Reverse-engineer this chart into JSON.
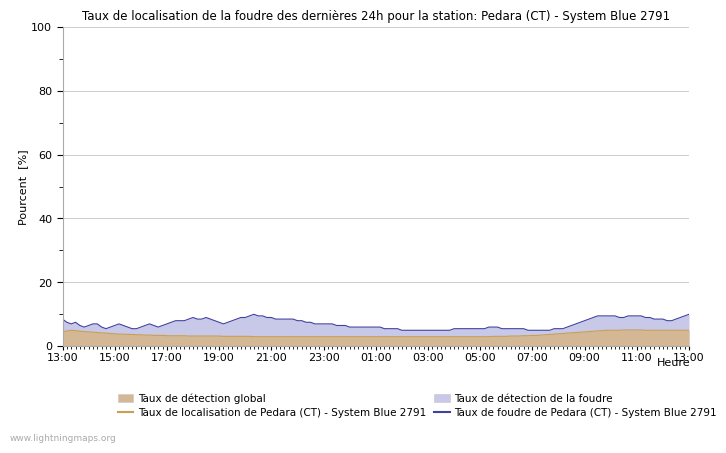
{
  "title": "Taux de localisation de la foudre des dernières 24h pour la station: Pedara (CT) - System Blue 2791",
  "ylabel": "Pourcent  [%]",
  "xlabel_right": "Heure",
  "watermark": "www.lightningmaps.org",
  "x_tick_labels": [
    "13:00",
    "15:00",
    "17:00",
    "19:00",
    "21:00",
    "23:00",
    "01:00",
    "03:00",
    "05:00",
    "07:00",
    "09:00",
    "11:00",
    "13:00"
  ],
  "ylim": [
    0,
    100
  ],
  "yticks": [
    0,
    20,
    40,
    60,
    80,
    100
  ],
  "yticks_minor": [
    10,
    30,
    50,
    70,
    90
  ],
  "background_color": "#ffffff",
  "plot_bg_color": "#ffffff",
  "grid_color": "#cccccc",
  "fill_global_color": "#d4b896",
  "fill_lightning_color": "#c8c8e8",
  "line_localization_color": "#c8a050",
  "line_lightning_pedara_color": "#4040a0",
  "legend_labels": [
    "Taux de détection global",
    "Taux de localisation de Pedara (CT) - System Blue 2791",
    "Taux de détection de la foudre",
    "Taux de foudre de Pedara (CT) - System Blue 2791"
  ],
  "n_points": 145,
  "global_detection_base": [
    4.5,
    4.8,
    5.0,
    4.9,
    4.7,
    4.6,
    4.5,
    4.4,
    4.3,
    4.2,
    4.1,
    4.0,
    3.9,
    3.8,
    3.8,
    3.7,
    3.7,
    3.6,
    3.6,
    3.5,
    3.5,
    3.4,
    3.4,
    3.4,
    3.3,
    3.3,
    3.3,
    3.3,
    3.3,
    3.2,
    3.2,
    3.2,
    3.2,
    3.2,
    3.2,
    3.2,
    3.2,
    3.1,
    3.1,
    3.1,
    3.1,
    3.1,
    3.1,
    3.1,
    3.0,
    3.0,
    3.0,
    3.0,
    3.0,
    3.0,
    3.0,
    3.0,
    3.0,
    3.0,
    3.0,
    3.0,
    3.0,
    3.0,
    3.0,
    3.0,
    3.0,
    3.0,
    3.0,
    3.0,
    3.0,
    3.0,
    3.0,
    3.0,
    3.0,
    3.0,
    3.0,
    3.0,
    3.0,
    3.0,
    3.0,
    3.0,
    3.0,
    3.0,
    3.0,
    3.0,
    3.0,
    3.0,
    3.0,
    3.0,
    3.0,
    3.0,
    3.0,
    3.0,
    3.0,
    3.0,
    3.0,
    3.0,
    3.0,
    3.0,
    3.0,
    3.0,
    3.0,
    3.0,
    3.0,
    3.1,
    3.1,
    3.1,
    3.1,
    3.2,
    3.2,
    3.2,
    3.3,
    3.3,
    3.4,
    3.4,
    3.5,
    3.6,
    3.7,
    3.8,
    3.9,
    4.0,
    4.1,
    4.2,
    4.3,
    4.4,
    4.5,
    4.6,
    4.7,
    4.8,
    4.9,
    5.0,
    5.0,
    5.0,
    5.0,
    5.1,
    5.1,
    5.1,
    5.1,
    5.1,
    5.0,
    5.0,
    5.0,
    5.0,
    5.0,
    5.0,
    5.0,
    5.0,
    5.0,
    5.0,
    5.0
  ],
  "lightning_detection": [
    8.5,
    7.5,
    7.0,
    7.5,
    6.5,
    6.0,
    6.5,
    7.0,
    7.0,
    6.0,
    5.5,
    6.0,
    6.5,
    7.0,
    6.5,
    6.0,
    5.5,
    5.5,
    6.0,
    6.5,
    7.0,
    6.5,
    6.0,
    6.5,
    7.0,
    7.5,
    8.0,
    8.0,
    8.0,
    8.5,
    9.0,
    8.5,
    8.5,
    9.0,
    8.5,
    8.0,
    7.5,
    7.0,
    7.5,
    8.0,
    8.5,
    9.0,
    9.0,
    9.5,
    10.0,
    9.5,
    9.5,
    9.0,
    9.0,
    8.5,
    8.5,
    8.5,
    8.5,
    8.5,
    8.0,
    8.0,
    7.5,
    7.5,
    7.0,
    7.0,
    7.0,
    7.0,
    7.0,
    6.5,
    6.5,
    6.5,
    6.0,
    6.0,
    6.0,
    6.0,
    6.0,
    6.0,
    6.0,
    6.0,
    5.5,
    5.5,
    5.5,
    5.5,
    5.0,
    5.0,
    5.0,
    5.0,
    5.0,
    5.0,
    5.0,
    5.0,
    5.0,
    5.0,
    5.0,
    5.0,
    5.5,
    5.5,
    5.5,
    5.5,
    5.5,
    5.5,
    5.5,
    5.5,
    6.0,
    6.0,
    6.0,
    5.5,
    5.5,
    5.5,
    5.5,
    5.5,
    5.5,
    5.0,
    5.0,
    5.0,
    5.0,
    5.0,
    5.0,
    5.5,
    5.5,
    5.5,
    6.0,
    6.5,
    7.0,
    7.5,
    8.0,
    8.5,
    9.0,
    9.5,
    9.5,
    9.5,
    9.5,
    9.5,
    9.0,
    9.0,
    9.5,
    9.5,
    9.5,
    9.5,
    9.0,
    9.0,
    8.5,
    8.5,
    8.5,
    8.0,
    8.0,
    8.5,
    9.0,
    9.5,
    10.0
  ]
}
